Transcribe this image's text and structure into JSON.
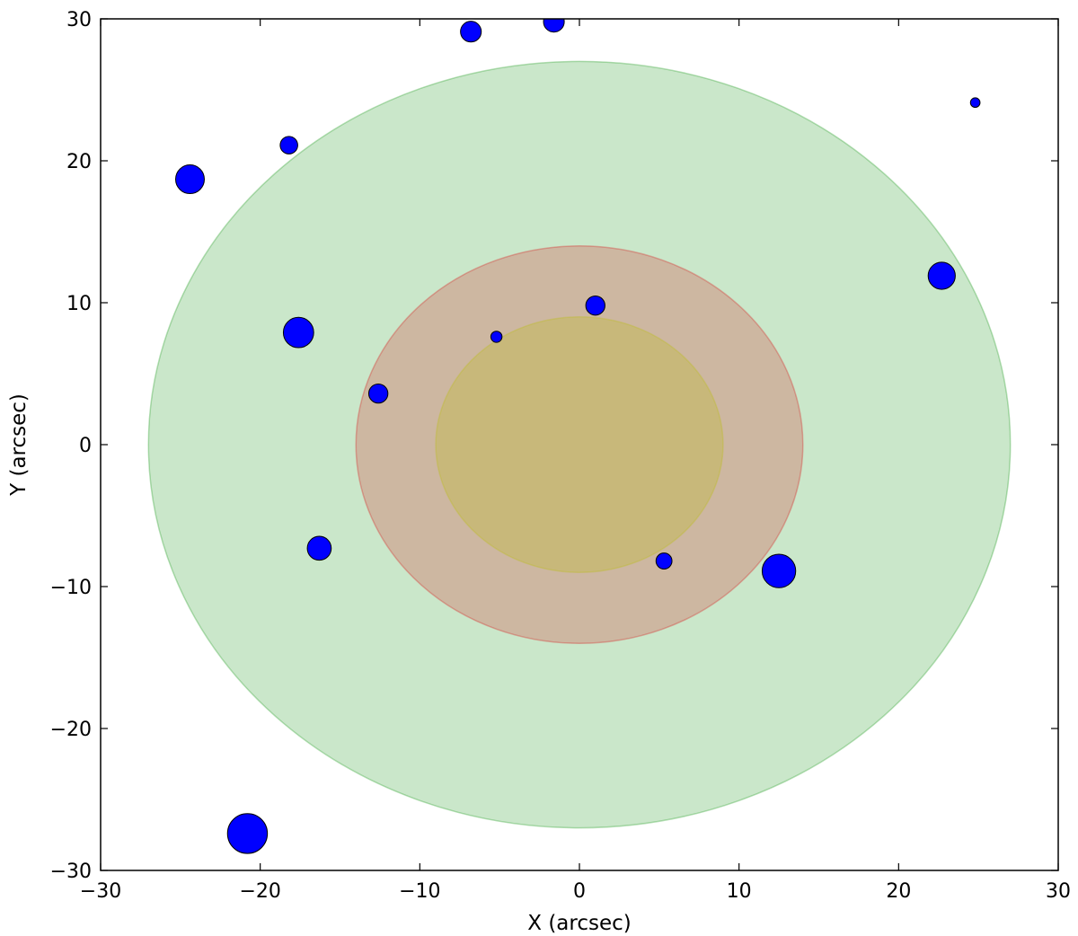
{
  "chart_data": {
    "type": "scatter",
    "title": "",
    "xlabel": "X (arcsec)",
    "ylabel": "Y (arcsec)",
    "xlim": [
      -30,
      30
    ],
    "ylim": [
      -30,
      30
    ],
    "xticks": [
      -30,
      -20,
      -10,
      0,
      10,
      20,
      30
    ],
    "yticks": [
      -30,
      -20,
      -10,
      0,
      10,
      20,
      30
    ],
    "xtick_labels": [
      "−30",
      "−20",
      "−10",
      "0",
      "10",
      "20",
      "30"
    ],
    "ytick_labels": [
      "−30",
      "−20",
      "−10",
      "0",
      "10",
      "20",
      "30"
    ],
    "grid": false,
    "regions": [
      {
        "shape": "ellipse",
        "center": [
          0,
          0
        ],
        "rx": 27,
        "ry": 27,
        "fill": "#2ca02c",
        "opacity": 0.25
      },
      {
        "shape": "ellipse",
        "center": [
          0,
          0
        ],
        "rx": 14,
        "ry": 14,
        "fill": "#d62728",
        "opacity": 0.25
      },
      {
        "shape": "ellipse",
        "center": [
          0,
          0
        ],
        "rx": 9,
        "ry": 9,
        "fill": "#bcbd22",
        "opacity": 0.3
      }
    ],
    "points": [
      {
        "x": -24.4,
        "y": 18.7,
        "r": 0.9
      },
      {
        "x": -18.2,
        "y": 21.1,
        "r": 0.55
      },
      {
        "x": -6.8,
        "y": 29.1,
        "r": 0.65
      },
      {
        "x": -1.6,
        "y": 29.8,
        "r": 0.65
      },
      {
        "x": 24.8,
        "y": 24.1,
        "r": 0.3
      },
      {
        "x": 22.7,
        "y": 11.9,
        "r": 0.85
      },
      {
        "x": -17.6,
        "y": 7.9,
        "r": 0.95
      },
      {
        "x": 1.0,
        "y": 9.8,
        "r": 0.6
      },
      {
        "x": -5.2,
        "y": 7.6,
        "r": 0.35
      },
      {
        "x": -12.6,
        "y": 3.6,
        "r": 0.6
      },
      {
        "x": -16.3,
        "y": -7.3,
        "r": 0.75
      },
      {
        "x": 5.3,
        "y": -8.2,
        "r": 0.5
      },
      {
        "x": 12.5,
        "y": -8.9,
        "r": 1.05
      },
      {
        "x": -20.8,
        "y": -27.4,
        "r": 1.25
      }
    ],
    "point_color": "#0000ff"
  }
}
